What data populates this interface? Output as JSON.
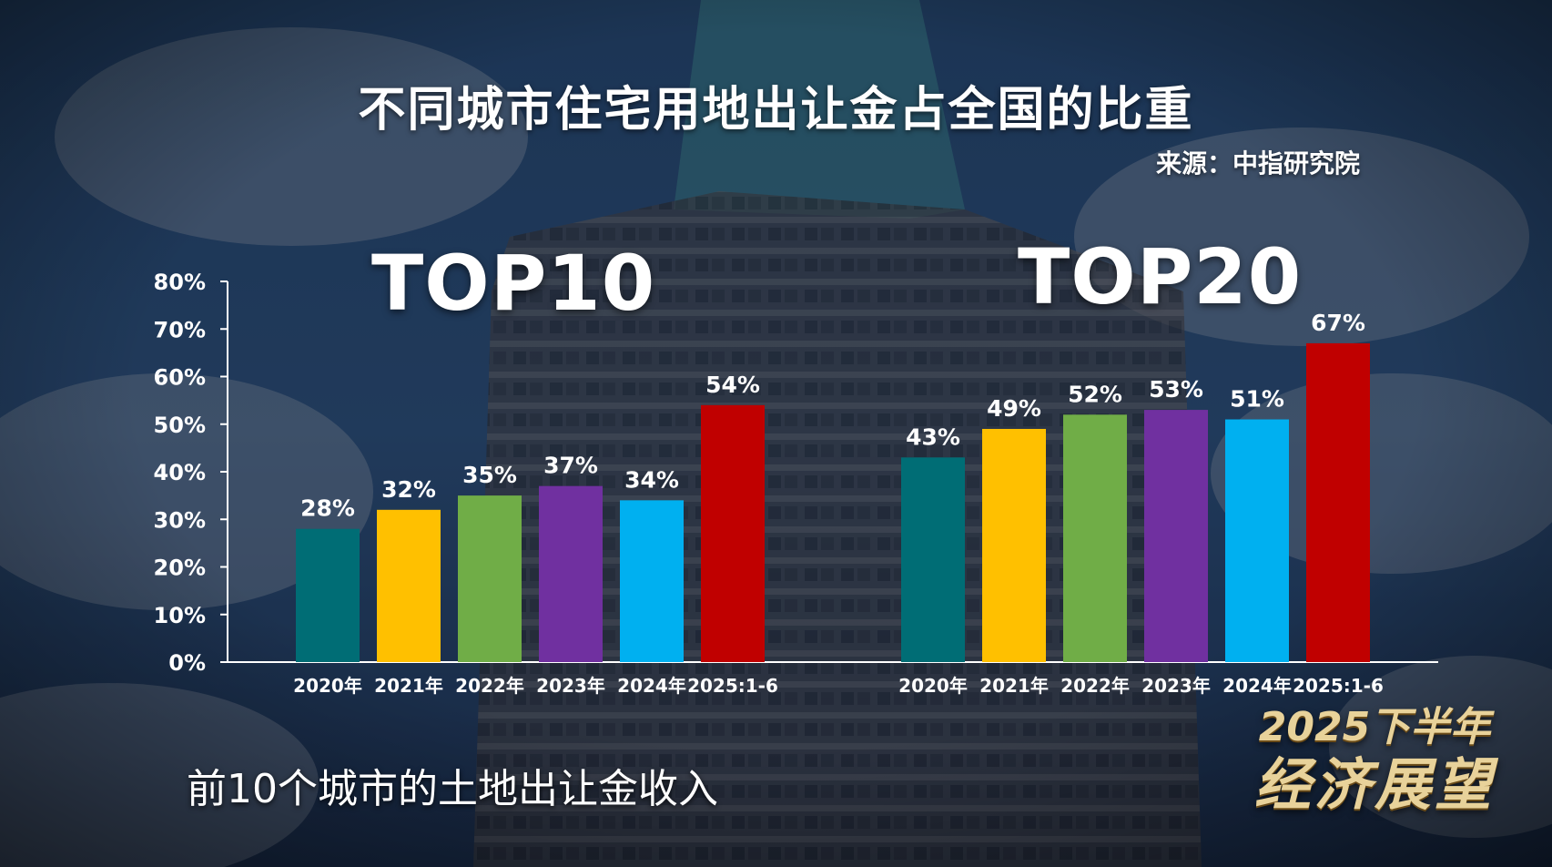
{
  "title": "不同城市住宅用地出让金占全国的比重",
  "source": "来源：中指研究院",
  "subtitle": "前10个城市的土地出让金收入",
  "badge": {
    "line1": "2025下半年",
    "line2": "经济展望"
  },
  "chart_data": [
    {
      "type": "bar",
      "title": "TOP10",
      "categories": [
        "2020年",
        "2021年",
        "2022年",
        "2023年",
        "2024年",
        "2025:1-6"
      ],
      "values": [
        28,
        32,
        35,
        37,
        34,
        54
      ],
      "value_labels": [
        "28%",
        "32%",
        "35%",
        "37%",
        "34%",
        "54%"
      ],
      "colors": [
        "#006d75",
        "#ffc000",
        "#70ad47",
        "#7030a0",
        "#00b0f0",
        "#c00000"
      ],
      "ylim": [
        0,
        80
      ],
      "yticks": [
        0,
        10,
        20,
        30,
        40,
        50,
        60,
        70,
        80
      ],
      "ytick_labels": [
        "0%",
        "10%",
        "20%",
        "30%",
        "40%",
        "50%",
        "60%",
        "70%",
        "80%"
      ],
      "grid": false,
      "legend": "none"
    },
    {
      "type": "bar",
      "title": "TOP20",
      "categories": [
        "2020年",
        "2021年",
        "2022年",
        "2023年",
        "2024年",
        "2025:1-6"
      ],
      "values": [
        43,
        49,
        52,
        53,
        51,
        67
      ],
      "value_labels": [
        "43%",
        "49%",
        "52%",
        "53%",
        "51%",
        "67%"
      ],
      "colors": [
        "#006d75",
        "#ffc000",
        "#70ad47",
        "#7030a0",
        "#00b0f0",
        "#c00000"
      ],
      "ylim": [
        0,
        80
      ],
      "grid": false,
      "legend": "none"
    }
  ]
}
